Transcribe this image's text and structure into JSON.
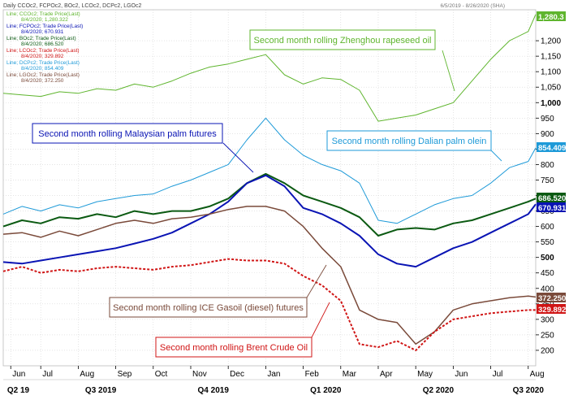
{
  "header": {
    "left": "Daily CCOc2, FCPOc2, BOc2, LCOc2, DCPc2, LGOc2",
    "right": "6/5/2019 - 8/26/2020 (SHA)"
  },
  "legend": [
    {
      "line1": "Line; CCOc2; Trade Price(Last)",
      "line2": "8/4/2020; 1,280.322",
      "color": "#5fb52e"
    },
    {
      "line1": "Line; FCPOc2; Trade Price(Last)",
      "line2": "8/4/2020; 670.931",
      "color": "#0a14b4"
    },
    {
      "line1": "Line; BOc2; Trade Price(Last)",
      "line2": "8/4/2020; 686.520",
      "color": "#0b5a12"
    },
    {
      "line1": "Line; LCOc2; Trade Price(Last)",
      "line2": "8/4/2020; 329.892",
      "color": "#d01515"
    },
    {
      "line1": "Line; DCPc2; Trade Price(Last)",
      "line2": "8/4/2020; 854.409",
      "color": "#1e9ad8"
    },
    {
      "line1": "Line; LGOc2; Trade Price(Last)",
      "line2": "8/4/2020; 372.250",
      "color": "#7a4a3a"
    }
  ],
  "annotations": [
    {
      "id": "rapeseed",
      "text": "Second month rolling Zhenghou rapeseed oil",
      "color": "#5fb52e"
    },
    {
      "id": "palm",
      "text": "Second month rolling Malaysian palm futures",
      "color": "#0a14b4"
    },
    {
      "id": "olein",
      "text": "Second month rolling Dalian palm olein",
      "color": "#1e9ad8"
    },
    {
      "id": "gasoil",
      "text": "Second month rolling ICE Gasoil (diesel) futures",
      "color": "#7a4a3a"
    },
    {
      "id": "brent",
      "text": "Second month rolling Brent Crude Oil",
      "color": "#d01515"
    }
  ],
  "badges": [
    {
      "text": "1,280.3",
      "color": "#5fb52e"
    },
    {
      "text": "854.409",
      "color": "#1e9ad8"
    },
    {
      "text": "686.520",
      "color": "#0b5a12"
    },
    {
      "text": "670.931",
      "color": "#0a14b4"
    },
    {
      "text": "372.250",
      "color": "#7a4a3a"
    },
    {
      "text": "329.892",
      "color": "#d01515"
    }
  ],
  "chart_data": {
    "type": "line",
    "ylim": [
      150,
      1300
    ],
    "y_ticks": [
      {
        "v": 200,
        "label": "200"
      },
      {
        "v": 250,
        "label": "250"
      },
      {
        "v": 300,
        "label": "300"
      },
      {
        "v": 350,
        "label": "350"
      },
      {
        "v": 400,
        "label": "400"
      },
      {
        "v": 450,
        "label": "450"
      },
      {
        "v": 500,
        "label": "500",
        "bold": true
      },
      {
        "v": 550,
        "label": "550"
      },
      {
        "v": 600,
        "label": "600"
      },
      {
        "v": 650,
        "label": "650"
      },
      {
        "v": 700,
        "label": "700"
      },
      {
        "v": 750,
        "label": "750"
      },
      {
        "v": 800,
        "label": "800"
      },
      {
        "v": 850,
        "label": "850"
      },
      {
        "v": 900,
        "label": "900"
      },
      {
        "v": 950,
        "label": "950"
      },
      {
        "v": 1000,
        "label": "1,000",
        "bold": true
      },
      {
        "v": 1050,
        "label": "1,050"
      },
      {
        "v": 1100,
        "label": "1,100"
      },
      {
        "v": 1150,
        "label": "1,150"
      },
      {
        "v": 1200,
        "label": "1,200"
      }
    ],
    "x_range": [
      0,
      14.2
    ],
    "months": [
      {
        "x": 0.2,
        "label": "Jun"
      },
      {
        "x": 1,
        "label": "Jul"
      },
      {
        "x": 2,
        "label": "Aug"
      },
      {
        "x": 3,
        "label": "Sep"
      },
      {
        "x": 4,
        "label": "Oct"
      },
      {
        "x": 5,
        "label": "Nov"
      },
      {
        "x": 6,
        "label": "Dec"
      },
      {
        "x": 7,
        "label": "Jan"
      },
      {
        "x": 8,
        "label": "Feb"
      },
      {
        "x": 9,
        "label": "Mar"
      },
      {
        "x": 10,
        "label": "Apr"
      },
      {
        "x": 11,
        "label": "May"
      },
      {
        "x": 12,
        "label": "Jun"
      },
      {
        "x": 13,
        "label": "Jul"
      },
      {
        "x": 14,
        "label": "Aug"
      }
    ],
    "quarters": [
      {
        "x": 0.4,
        "label": "Q2 19"
      },
      {
        "x": 2.6,
        "label": "Q3 2019"
      },
      {
        "x": 5.6,
        "label": "Q4 2019"
      },
      {
        "x": 8.6,
        "label": "Q1 2020"
      },
      {
        "x": 11.6,
        "label": "Q2 2020"
      },
      {
        "x": 14.0,
        "label": "Q3 2020"
      }
    ],
    "series": [
      {
        "id": "rapeseed",
        "color": "#5fb52e",
        "width": 1,
        "dash": "",
        "x": [
          0,
          0.5,
          1,
          1.5,
          2,
          2.5,
          3,
          3.5,
          4,
          4.5,
          5,
          5.5,
          6,
          6.5,
          7,
          7.5,
          8,
          8.5,
          9,
          9.5,
          10,
          10.5,
          11,
          11.5,
          12,
          12.5,
          13,
          13.5,
          14,
          14.2
        ],
        "y": [
          1030,
          1025,
          1020,
          1035,
          1030,
          1045,
          1040,
          1060,
          1050,
          1070,
          1095,
          1115,
          1125,
          1140,
          1155,
          1090,
          1060,
          1080,
          1075,
          1040,
          940,
          950,
          960,
          980,
          1000,
          1070,
          1140,
          1200,
          1230,
          1285
        ]
      },
      {
        "id": "olein",
        "color": "#1e9ad8",
        "width": 1,
        "dash": "",
        "x": [
          0,
          0.5,
          1,
          1.5,
          2,
          2.5,
          3,
          3.5,
          4,
          4.5,
          5,
          5.5,
          6,
          6.5,
          7,
          7.5,
          8,
          8.5,
          9,
          9.5,
          10,
          10.5,
          11,
          11.5,
          12,
          12.5,
          13,
          13.5,
          14,
          14.2
        ],
        "y": [
          640,
          665,
          650,
          670,
          660,
          680,
          690,
          700,
          705,
          730,
          750,
          775,
          800,
          880,
          950,
          880,
          830,
          800,
          780,
          740,
          620,
          610,
          640,
          670,
          690,
          700,
          740,
          790,
          810,
          854
        ]
      },
      {
        "id": "palm_bo",
        "color": "#0b5a12",
        "width": 2,
        "dash": "",
        "x": [
          0,
          0.5,
          1,
          1.5,
          2,
          2.5,
          3,
          3.5,
          4,
          4.5,
          5,
          5.5,
          6,
          6.5,
          7,
          7.5,
          8,
          8.5,
          9,
          9.5,
          10,
          10.5,
          11,
          11.5,
          12,
          12.5,
          13,
          13.5,
          14,
          14.2
        ],
        "y": [
          600,
          620,
          610,
          630,
          625,
          640,
          630,
          650,
          640,
          650,
          650,
          665,
          690,
          740,
          770,
          740,
          700,
          680,
          660,
          630,
          570,
          590,
          595,
          590,
          610,
          620,
          640,
          660,
          680,
          690
        ]
      },
      {
        "id": "palm",
        "color": "#0a14b4",
        "width": 2,
        "dash": "",
        "x": [
          0,
          0.5,
          1,
          1.5,
          2,
          2.5,
          3,
          3.5,
          4,
          4.5,
          5,
          5.5,
          6,
          6.5,
          7,
          7.5,
          8,
          8.5,
          9,
          9.5,
          10,
          10.5,
          11,
          11.5,
          12,
          12.5,
          13,
          13.5,
          14,
          14.2
        ],
        "y": [
          485,
          480,
          490,
          500,
          510,
          520,
          530,
          545,
          560,
          580,
          610,
          640,
          680,
          740,
          765,
          730,
          660,
          640,
          610,
          570,
          510,
          480,
          470,
          500,
          530,
          550,
          580,
          610,
          640,
          672
        ]
      },
      {
        "id": "gasoil",
        "color": "#7a4a3a",
        "width": 1.5,
        "dash": "",
        "x": [
          0,
          0.5,
          1,
          1.5,
          2,
          2.5,
          3,
          3.5,
          4,
          4.5,
          5,
          5.5,
          6,
          6.5,
          7,
          7.5,
          8,
          8.5,
          9,
          9.5,
          10,
          10.5,
          11,
          11.5,
          12,
          12.5,
          13,
          13.5,
          14,
          14.2
        ],
        "y": [
          575,
          580,
          565,
          585,
          570,
          590,
          610,
          620,
          610,
          625,
          630,
          640,
          655,
          665,
          665,
          650,
          600,
          530,
          470,
          330,
          300,
          290,
          220,
          260,
          330,
          350,
          360,
          370,
          375,
          372
        ]
      },
      {
        "id": "brent",
        "color": "#d01515",
        "width": 2,
        "dash": "3,2",
        "x": [
          0,
          0.5,
          1,
          1.5,
          2,
          2.5,
          3,
          3.5,
          4,
          4.5,
          5,
          5.5,
          6,
          6.5,
          7,
          7.5,
          8,
          8.5,
          9,
          9.5,
          10,
          10.5,
          11,
          11.5,
          12,
          12.5,
          13,
          13.5,
          14,
          14.2
        ],
        "y": [
          455,
          470,
          450,
          460,
          455,
          465,
          470,
          465,
          460,
          470,
          475,
          485,
          495,
          490,
          490,
          480,
          440,
          410,
          360,
          220,
          210,
          230,
          200,
          260,
          300,
          310,
          320,
          325,
          330,
          330
        ]
      }
    ]
  }
}
